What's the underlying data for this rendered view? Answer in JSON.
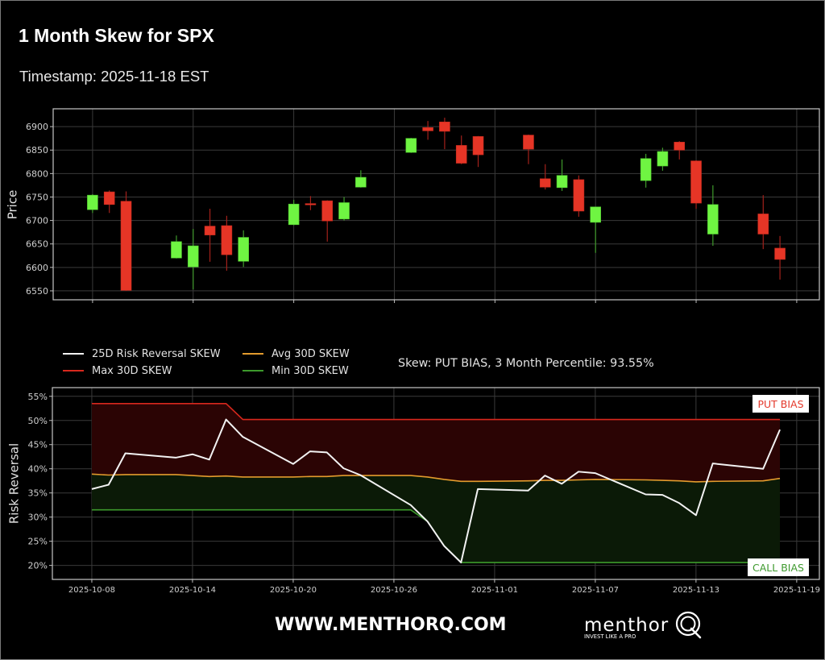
{
  "header": {
    "title": "1 Month Skew for SPX",
    "timestamp": "Timestamp: 2025-11-18 EST"
  },
  "skew_panel": {
    "status": "Skew: PUT BIAS, 3 Month Percentile: 93.55%"
  },
  "footer": {
    "website": "WWW.MENTHORQ.COM",
    "logo_wordmark": "menthor",
    "logo_tagline": "INVEST LIKE A PRO",
    "logo_mark_icon": "q-ring-icon"
  },
  "chart_data": [
    {
      "type": "candlestick",
      "title": "",
      "xlabel": "",
      "ylabel": "Price",
      "x": [
        "2025-10-08",
        "2025-10-09",
        "2025-10-10",
        "2025-10-13",
        "2025-10-14",
        "2025-10-15",
        "2025-10-16",
        "2025-10-17",
        "2025-10-20",
        "2025-10-21",
        "2025-10-22",
        "2025-10-23",
        "2025-10-24",
        "2025-10-27",
        "2025-10-28",
        "2025-10-29",
        "2025-10-30",
        "2025-10-31",
        "2025-11-03",
        "2025-11-04",
        "2025-11-05",
        "2025-11-06",
        "2025-11-07",
        "2025-11-10",
        "2025-11-11",
        "2025-11-12",
        "2025-11-13",
        "2025-11-14",
        "2025-11-17",
        "2025-11-18"
      ],
      "open": [
        6723,
        6761,
        6741,
        6620,
        6601,
        6688,
        6689,
        6613,
        6691,
        6736,
        6742,
        6703,
        6771,
        6845,
        6898,
        6910,
        6860,
        6879,
        6882,
        6789,
        6770,
        6787,
        6696,
        6785,
        6816,
        6867,
        6827,
        6671,
        6714,
        6641
      ],
      "high": [
        6756,
        6764,
        6762,
        6668,
        6682,
        6725,
        6710,
        6679,
        6744,
        6752,
        6743,
        6750,
        6807,
        6876,
        6912,
        6919,
        6881,
        6880,
        6883,
        6820,
        6830,
        6796,
        6729,
        6842,
        6855,
        6869,
        6828,
        6775,
        6754,
        6667
      ],
      "low": [
        6716,
        6716,
        6550,
        6619,
        6553,
        6612,
        6593,
        6601,
        6690,
        6722,
        6655,
        6700,
        6770,
        6844,
        6872,
        6852,
        6820,
        6814,
        6820,
        6766,
        6763,
        6708,
        6631,
        6770,
        6806,
        6830,
        6725,
        6646,
        6639,
        6574
      ],
      "close": [
        6754,
        6734,
        6551,
        6655,
        6646,
        6669,
        6627,
        6664,
        6735,
        6735,
        6699,
        6738,
        6792,
        6875,
        6891,
        6890,
        6822,
        6840,
        6852,
        6771,
        6796,
        6720,
        6729,
        6832,
        6847,
        6850,
        6737,
        6734,
        6671,
        6617
      ],
      "ylim": [
        6531,
        6938
      ],
      "yticks": [
        6550,
        6600,
        6650,
        6700,
        6750,
        6800,
        6850,
        6900
      ],
      "xticks": [
        "2025-10-08",
        "2025-10-14",
        "2025-10-20",
        "2025-10-26",
        "2025-11-01",
        "2025-11-07",
        "2025-11-13",
        "2025-11-19"
      ],
      "xtick_labels_visible": false,
      "xlim_days_from_first": [
        -2.35,
        43.35
      ],
      "grid": true,
      "colors": {
        "up": "#6ff542",
        "down": "#e63526",
        "up_wick": "#3f9a2b",
        "down_wick": "#a3211b"
      }
    },
    {
      "type": "line",
      "title": "",
      "xlabel": "",
      "ylabel": "Risk Reversal",
      "x": [
        "2025-10-08",
        "2025-10-09",
        "2025-10-10",
        "2025-10-13",
        "2025-10-14",
        "2025-10-15",
        "2025-10-16",
        "2025-10-17",
        "2025-10-20",
        "2025-10-21",
        "2025-10-22",
        "2025-10-23",
        "2025-10-24",
        "2025-10-27",
        "2025-10-28",
        "2025-10-29",
        "2025-10-30",
        "2025-10-31",
        "2025-11-03",
        "2025-11-04",
        "2025-11-05",
        "2025-11-06",
        "2025-11-07",
        "2025-11-10",
        "2025-11-11",
        "2025-11-12",
        "2025-11-13",
        "2025-11-14",
        "2025-11-17",
        "2025-11-18"
      ],
      "series": [
        {
          "name": "25D Risk Reversal SKEW",
          "color": "#f2f2f2",
          "width": 2,
          "values": [
            35.8,
            36.7,
            43.2,
            42.3,
            43.0,
            41.9,
            50.2,
            46.6,
            41.0,
            43.6,
            43.4,
            40.1,
            38.7,
            32.5,
            29.1,
            24.0,
            20.6,
            35.8,
            35.5,
            38.6,
            36.9,
            39.4,
            39.1,
            34.7,
            34.6,
            32.9,
            30.4,
            41.1,
            40.0,
            48.1
          ]
        },
        {
          "name": "Max 30D SKEW",
          "color": "#d8281d",
          "width": 1.6,
          "values": [
            53.5,
            53.5,
            53.5,
            53.5,
            53.5,
            53.5,
            53.5,
            50.2,
            50.2,
            50.2,
            50.2,
            50.2,
            50.2,
            50.2,
            50.2,
            50.2,
            50.2,
            50.2,
            50.2,
            50.2,
            50.2,
            50.2,
            50.2,
            50.2,
            50.2,
            50.2,
            50.2,
            50.2,
            50.2,
            50.2
          ]
        },
        {
          "name": "Avg 30D SKEW",
          "color": "#e39b2d",
          "width": 1.6,
          "values": [
            38.9,
            38.7,
            38.8,
            38.8,
            38.6,
            38.4,
            38.5,
            38.3,
            38.3,
            38.4,
            38.4,
            38.6,
            38.6,
            38.6,
            38.3,
            37.8,
            37.4,
            37.4,
            37.5,
            37.6,
            37.6,
            37.7,
            37.8,
            37.7,
            37.6,
            37.5,
            37.3,
            37.4,
            37.5,
            38.0
          ]
        },
        {
          "name": "Min 30D SKEW",
          "color": "#3d9a2c",
          "width": 1.6,
          "values": [
            31.5,
            31.5,
            31.5,
            31.5,
            31.5,
            31.5,
            31.5,
            31.5,
            31.5,
            31.5,
            31.5,
            31.5,
            31.5,
            31.5,
            29.1,
            24.0,
            20.6,
            20.6,
            20.6,
            20.6,
            20.6,
            20.6,
            20.6,
            20.6,
            20.6,
            20.6,
            20.6,
            20.6,
            20.6,
            20.6
          ]
        }
      ],
      "fills": [
        {
          "upper": 1,
          "lower": 2,
          "color": "#2b0404",
          "label": "PUT BIAS"
        },
        {
          "upper": 2,
          "lower": 3,
          "color": "#0b1a07",
          "label": "CALL BIAS"
        }
      ],
      "ylim": [
        17.1,
        56.8
      ],
      "yticks": [
        20,
        25,
        30,
        35,
        40,
        45,
        50,
        55
      ],
      "ytick_suffix": "%",
      "xticks": [
        "2025-10-08",
        "2025-10-14",
        "2025-10-20",
        "2025-10-26",
        "2025-11-01",
        "2025-11-07",
        "2025-11-13",
        "2025-11-19"
      ],
      "xtick_labels_visible": true,
      "xlim_days_from_first": [
        -2.35,
        43.35
      ],
      "grid": true,
      "legend_position": "above plot, upper left, 2 columns",
      "annotations": [
        {
          "text": "PUT BIAS",
          "color": "#e4392b",
          "position": "upper right"
        },
        {
          "text": "CALL BIAS",
          "color": "#3f9a2f",
          "position": "lower right"
        }
      ]
    }
  ]
}
